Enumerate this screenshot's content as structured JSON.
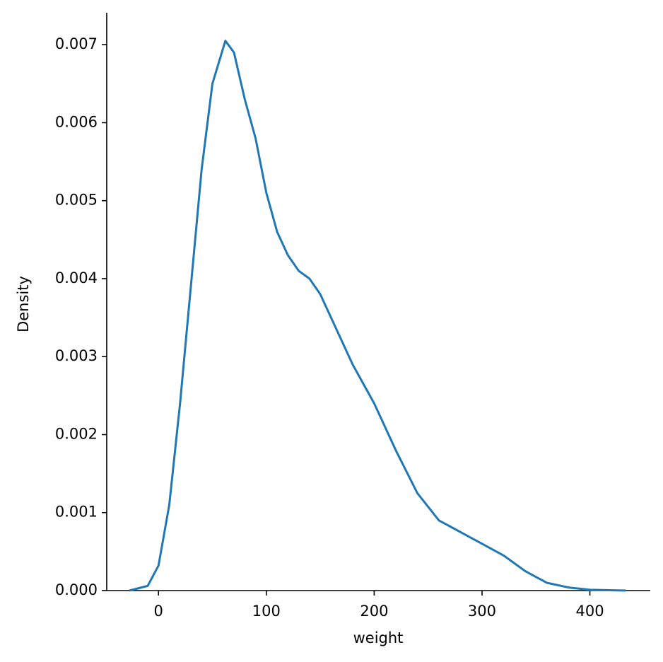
{
  "chart_data": {
    "type": "line",
    "xlabel": "weight",
    "ylabel": "Density",
    "x": [
      -27,
      -10,
      0,
      10,
      20,
      30,
      40,
      50,
      62,
      70,
      80,
      90,
      100,
      110,
      120,
      130,
      140,
      150,
      160,
      170,
      180,
      200,
      220,
      240,
      260,
      280,
      300,
      320,
      340,
      360,
      380,
      400,
      433
    ],
    "series": [
      {
        "name": "weight",
        "color": "#1f77b4",
        "values": [
          0,
          6e-05,
          0.00032,
          0.0011,
          0.0024,
          0.0039,
          0.0054,
          0.0065,
          0.00705,
          0.0069,
          0.0063,
          0.0058,
          0.0051,
          0.0046,
          0.0043,
          0.0041,
          0.004,
          0.0038,
          0.0035,
          0.0032,
          0.0029,
          0.0024,
          0.0018,
          0.00125,
          0.0009,
          0.00075,
          0.0006,
          0.00045,
          0.00025,
          0.0001,
          4e-05,
          1e-05,
          0
        ]
      }
    ],
    "xlim": [
      -48,
      456
    ],
    "ylim": [
      0,
      0.00741
    ],
    "xticks": [
      0,
      100,
      200,
      300,
      400
    ],
    "yticks": [
      {
        "value": 0,
        "label": "0.000"
      },
      0.001,
      0.002,
      0.003,
      0.004,
      0.005,
      0.006,
      0.007
    ],
    "grid": false
  }
}
